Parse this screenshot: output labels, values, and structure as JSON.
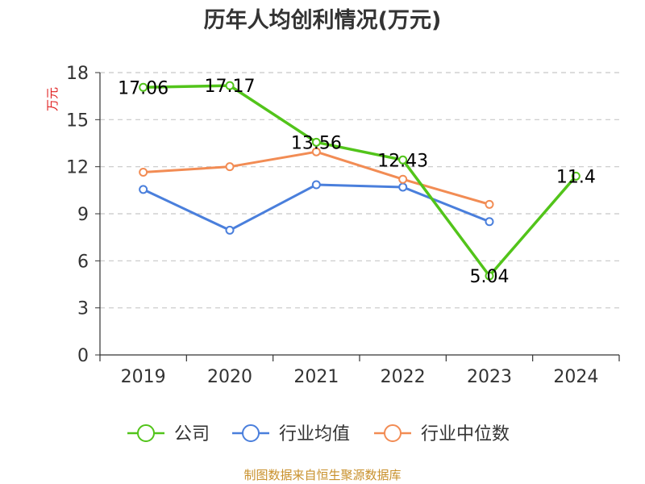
{
  "chart_data": {
    "type": "line",
    "title": "历年人均创利情况(万元)",
    "ylabel": "万元",
    "xlabel": "",
    "categories": [
      "2019",
      "2020",
      "2021",
      "2022",
      "2023",
      "2024"
    ],
    "ylim": [
      0,
      18
    ],
    "yticks": [
      0,
      3,
      6,
      9,
      12,
      15,
      18
    ],
    "grid": true,
    "legend_position": "bottom",
    "series": [
      {
        "name": "公司",
        "color": "#52c41a",
        "values": [
          17.06,
          17.17,
          13.56,
          12.43,
          5.04,
          11.4
        ],
        "labels": [
          "17.06",
          "17.17",
          "13.56",
          "12.43",
          "5.04",
          "11.4"
        ]
      },
      {
        "name": "行业均值",
        "color": "#4a7fdc",
        "values": [
          10.55,
          7.95,
          10.85,
          10.7,
          8.5,
          null
        ]
      },
      {
        "name": "行业中位数",
        "color": "#f28c54",
        "values": [
          11.65,
          12.0,
          12.95,
          11.2,
          9.6,
          null
        ]
      }
    ]
  },
  "footer": {
    "source": "制图数据来自恒生聚源数据库"
  }
}
